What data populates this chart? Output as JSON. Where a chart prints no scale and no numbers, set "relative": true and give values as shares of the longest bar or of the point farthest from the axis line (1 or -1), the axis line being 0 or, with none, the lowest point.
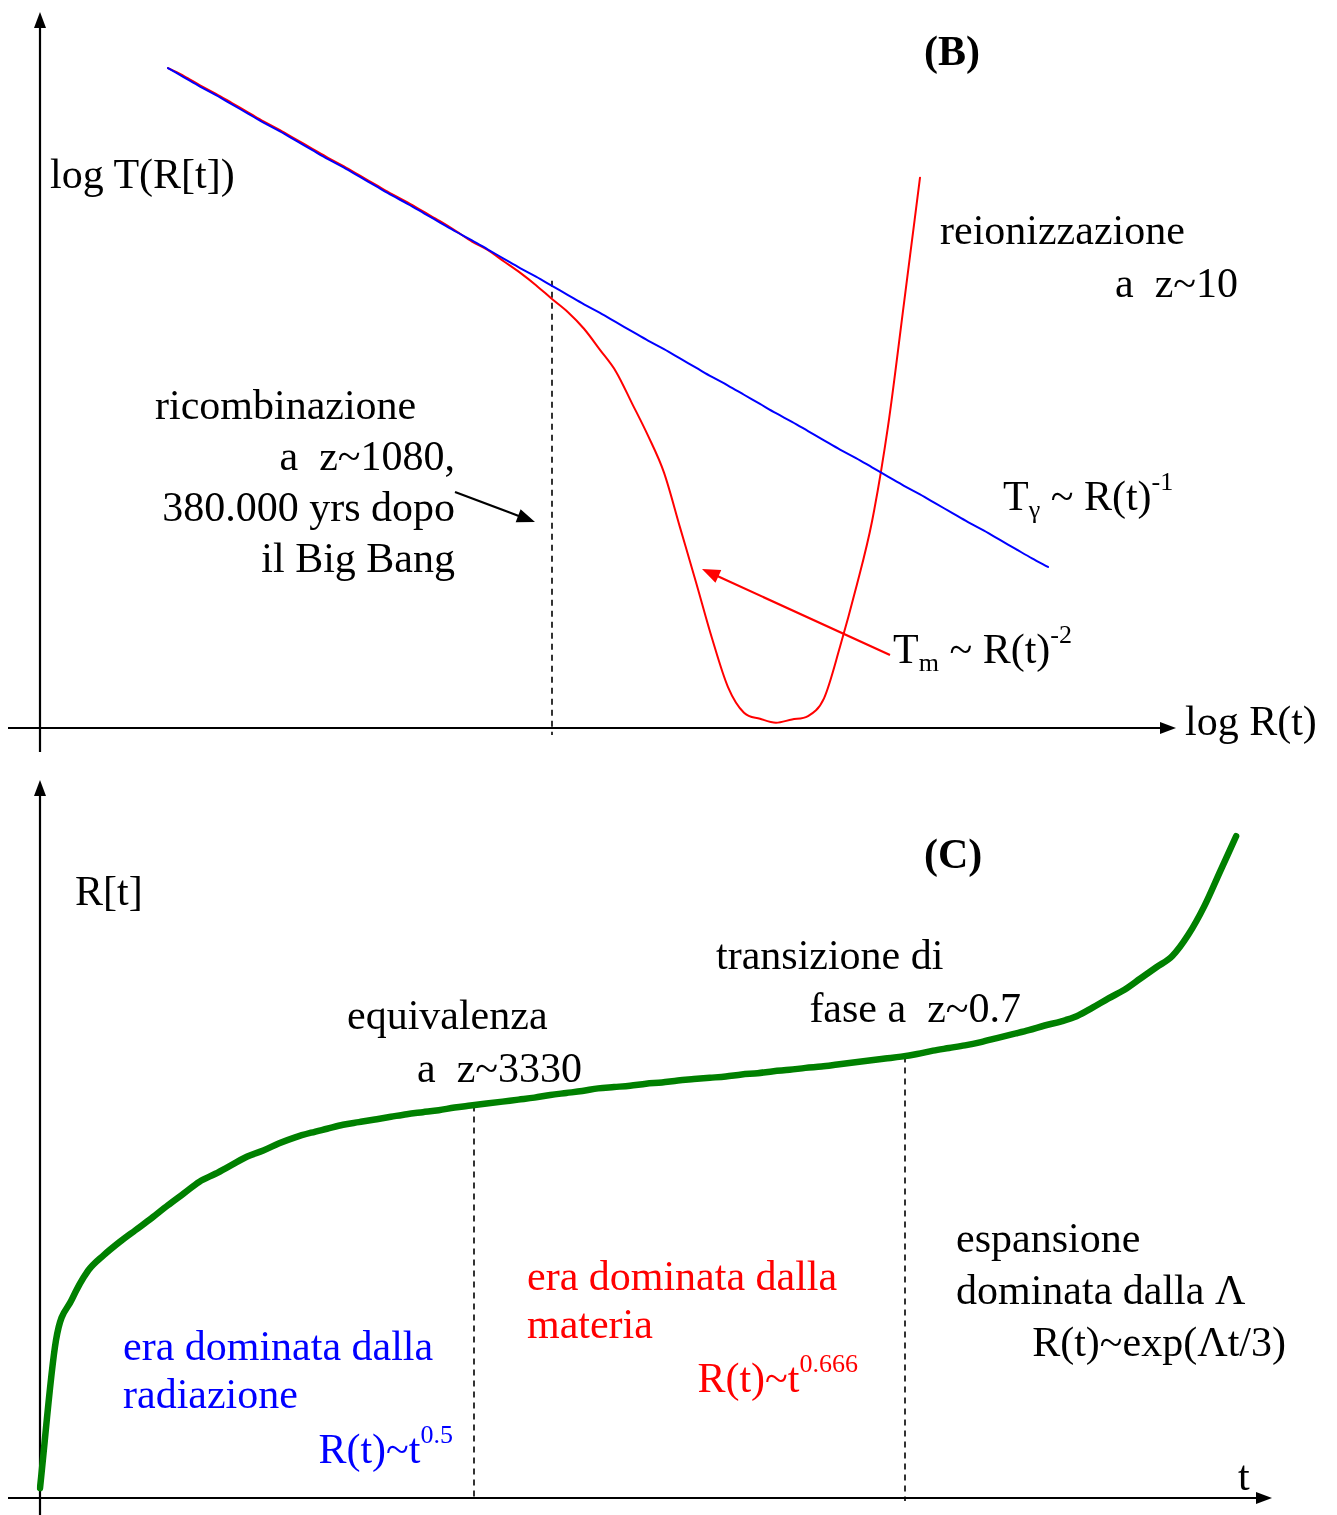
{
  "chart_data": [
    {
      "type": "line",
      "title": "(B)",
      "xlabel": "log R(t)",
      "ylabel": "log T(R[t])",
      "relative": true,
      "legend": false,
      "marker": "none",
      "categories": [
        null,
        null,
        null,
        null,
        null,
        null,
        null,
        null,
        null,
        null,
        null,
        null,
        null,
        null,
        null,
        null,
        null,
        null,
        null,
        null,
        null,
        null,
        null,
        null,
        null,
        null,
        null,
        null,
        null,
        null,
        null,
        null,
        null,
        null,
        null,
        null,
        null,
        null,
        null,
        null,
        null,
        null,
        null,
        null,
        null,
        null,
        null,
        null,
        null,
        null,
        null,
        null,
        null,
        null,
        null,
        null,
        null,
        null,
        null,
        null,
        null,
        null,
        null,
        null,
        null,
        null,
        null,
        null,
        null,
        null,
        null,
        null
      ],
      "series": [
        {
          "name": "T$_{γ}$ ~ R(t)$^{-1}$",
          "color": "#0000ff",
          "values": [
            null,
            null,
            null,
            null,
            null,
            null,
            null,
            null,
            1,
            0.986,
            0.972,
            0.959,
            0.945,
            0.931,
            0.917,
            0.904,
            0.89,
            0.876,
            0.862,
            0.849,
            0.835,
            0.821,
            0.807,
            0.794,
            0.78,
            0.766,
            0.752,
            0.739,
            0.725,
            0.711,
            0.697,
            0.684,
            0.67,
            0.656,
            0.642,
            0.629,
            0.615,
            0.601,
            0.587,
            0.574,
            0.56,
            0.546,
            0.532,
            0.519,
            0.505,
            0.491,
            0.477,
            0.464,
            0.45,
            0.436,
            0.422,
            0.409,
            0.395,
            0.381,
            0.367,
            0.354,
            0.34,
            0.326,
            0.312,
            0.299,
            0.285,
            0.271,
            0.257,
            0.244,
            null,
            null,
            null,
            null,
            null,
            null,
            null,
            null
          ]
        },
        {
          "name": "T$_{m}$ ~ R(t)$^{-2}$",
          "color": "#ff0000",
          "values": [
            null,
            null,
            null,
            null,
            null,
            null,
            null,
            null,
            1,
            0.988,
            0.974,
            0.961,
            0.947,
            0.933,
            0.919,
            0.906,
            0.892,
            0.878,
            0.864,
            0.851,
            0.837,
            0.823,
            0.809,
            0.796,
            0.782,
            0.768,
            0.753,
            0.737,
            0.724,
            0.707,
            0.69,
            0.671,
            0.65,
            0.63,
            0.605,
            0.573,
            0.54,
            0.492,
            0.443,
            0.387,
            0.304,
            0.221,
            0.136,
            0.062,
            0.023,
            0.014,
            0.008,
            0.013,
            0.018,
            0.045,
            0.123,
            0.212,
            0.313,
            0.457,
            0.644,
            0.834,
            null,
            null,
            null,
            null,
            null,
            null,
            null,
            null,
            null,
            null,
            null,
            null,
            null,
            null,
            null,
            null
          ]
        }
      ],
      "annotations": [
        "ricombinazione\na  z~1080,\n380.000 yrs dopo\nil Big Bang",
        "reionizzazione\na  z~10"
      ]
    },
    {
      "type": "line",
      "title": "(C)",
      "xlabel": "t",
      "ylabel": "R[t]",
      "relative": true,
      "legend": false,
      "marker": "none",
      "categories": [
        null,
        null,
        null,
        null,
        null,
        null,
        null,
        null,
        null,
        null,
        null,
        null,
        null,
        null,
        null,
        null,
        null,
        null,
        null,
        null,
        null,
        null,
        null,
        null,
        null,
        null,
        null,
        null,
        null,
        null,
        null,
        null,
        null,
        null,
        null,
        null,
        null,
        null,
        null,
        null,
        null,
        null,
        null,
        null,
        null,
        null,
        null,
        null,
        null,
        null,
        null,
        null,
        null,
        null,
        null,
        null,
        null,
        null,
        null,
        null,
        null,
        null,
        null,
        null,
        null,
        null,
        null,
        null,
        null,
        null,
        null,
        null,
        null,
        null,
        null,
        null,
        null,
        null
      ],
      "series": [
        {
          "color": "#008000",
          "values": [
            0.015,
            0.238,
            0.3,
            0.343,
            0.367,
            0.387,
            0.405,
            0.423,
            0.442,
            0.46,
            0.478,
            0.49,
            0.503,
            0.516,
            0.525,
            0.536,
            0.545,
            0.552,
            0.558,
            0.564,
            0.568,
            0.572,
            0.576,
            0.58,
            0.583,
            0.586,
            0.59,
            0.593,
            0.596,
            0.599,
            0.602,
            0.605,
            0.609,
            0.612,
            0.615,
            0.619,
            0.621,
            0.623,
            0.626,
            0.628,
            0.631,
            0.633,
            0.635,
            0.637,
            0.64,
            0.642,
            0.645,
            0.647,
            0.65,
            0.652,
            0.655,
            0.658,
            0.661,
            0.664,
            0.667,
            0.671,
            0.676,
            0.68,
            0.684,
            0.689,
            0.695,
            0.701,
            0.707,
            0.714,
            0.72,
            0.728,
            0.741,
            0.755,
            0.768,
            0.785,
            0.802,
            0.819,
            0.851,
            0.894,
            0.947,
            1,
            null,
            null
          ]
        }
      ],
      "annotations": [
        "equivalenza\na  z~3330",
        "transizione di\nfase a  z~0.7",
        "era dominata dalla\nradiazione",
        "R(t)~t$^{0.5}$",
        "era dominata dalla\nmateria",
        "R(t)~t$^{0.666}$",
        "espansione\ndominata dalla Λ\nR(t)~exp(Λt/3)"
      ]
    }
  ]
}
